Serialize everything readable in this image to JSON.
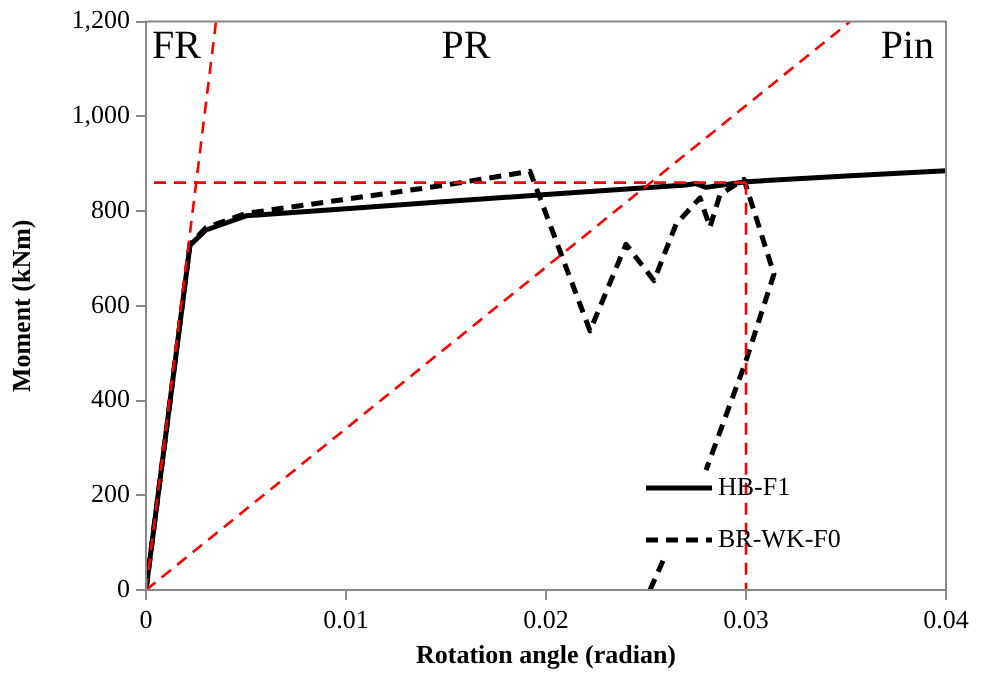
{
  "chart_data": {
    "type": "line",
    "xlabel": "Rotation angle (radian)",
    "ylabel": "Moment (kNm)",
    "xlim": [
      0,
      0.04
    ],
    "xticks": [
      0,
      0.01,
      0.02,
      0.03,
      0.04
    ],
    "ylim": [
      0,
      1200
    ],
    "yticks": [
      0,
      200,
      400,
      600,
      800,
      {
        "value": 1000,
        "label": "1,000"
      },
      {
        "value": 1200,
        "label": "1,200"
      }
    ],
    "grid": false,
    "legend": "bottom right",
    "marker": "none",
    "series": [
      {
        "name": "HB-F1",
        "color": "#000000",
        "line_style": "solid",
        "x": [
          0,
          0.0022,
          0.003,
          0.005,
          0.01,
          0.015,
          0.02,
          0.027,
          0.0275,
          0.028,
          0.03,
          0.035,
          0.04
        ],
        "values": [
          0,
          728,
          760,
          790,
          805,
          820,
          835,
          855,
          858,
          850,
          862,
          874,
          885
        ]
      },
      {
        "name": "BR-WK-F0",
        "color": "#000000",
        "line_style": "dashed",
        "x": [
          0,
          0.0022,
          0.003,
          0.005,
          0.01,
          0.015,
          0.0192,
          0.0222,
          0.024,
          0.0254,
          0.0265,
          0.0277,
          0.0282,
          0.0287,
          0.0299,
          0.0314,
          0.03,
          0.028,
          null,
          0.0252,
          0.026
        ],
        "values": [
          0,
          730,
          765,
          795,
          825,
          855,
          884,
          547,
          730,
          653,
          772,
          828,
          766,
          835,
          867,
          667,
          484,
          253,
          null,
          0,
          76
        ]
      },
      {
        "color": "#ff0000",
        "line_style": "dashed",
        "x": [
          0,
          0.0035
        ],
        "values": [
          0,
          1200
        ]
      },
      {
        "color": "#ff0000",
        "line_style": "dashed",
        "x": [
          0,
          0.0352
        ],
        "values": [
          0,
          1200
        ]
      },
      {
        "color": "#ff0000",
        "line_style": "dashed",
        "x": [
          0.03,
          0
        ],
        "values": [
          860,
          860
        ]
      },
      {
        "color": "#ff0000",
        "line_style": "dashed",
        "x": [
          0.03,
          0.03
        ],
        "values": [
          860,
          0
        ]
      }
    ],
    "annotations": [
      "FR",
      "PR",
      "Pin"
    ]
  }
}
